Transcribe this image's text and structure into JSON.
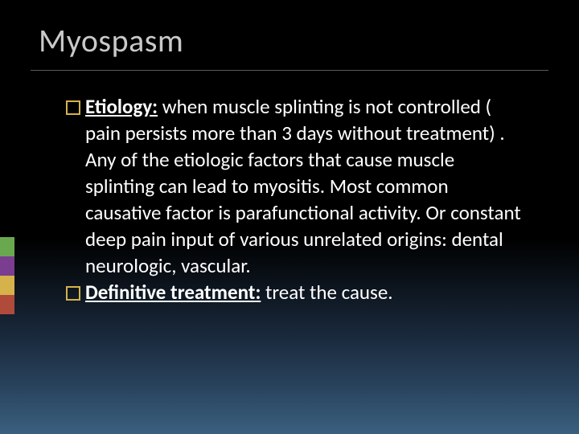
{
  "slide": {
    "title": "Myospasm",
    "bullets": [
      {
        "lead": "Etiology:",
        "text": " when muscle splinting is not controlled ( pain persists more than 3 days without treatment) . Any of the etiologic factors that cause muscle splinting can lead to myositis. Most common causative factor is parafunctional activity. Or constant deep pain input of various unrelated origins: dental neurologic, vascular."
      },
      {
        "lead": "Definitive treatment:",
        "text": " treat the cause."
      }
    ]
  },
  "style": {
    "accent_bars": [
      "#6aa84f",
      "#7a3d8f",
      "#d6b24a",
      "#b04a3a"
    ],
    "bullet_border_color": "#d6b24a",
    "title_color": "#c9c9c9",
    "rule_color": "#5a5a5a",
    "background_gradient": [
      "#000000",
      "#1a2a3d",
      "#2a4560",
      "#3a607f"
    ],
    "title_fontsize": 40,
    "body_fontsize": 25
  }
}
